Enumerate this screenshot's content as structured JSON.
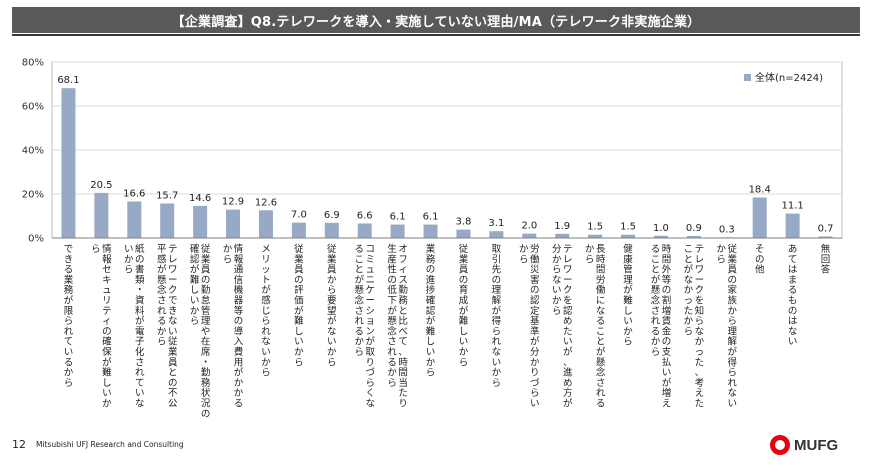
{
  "header": {
    "title": "【企業調査】Q8.テレワークを導入・実施していない理由/MA（テレワーク非実施企業）"
  },
  "footer": {
    "page": "12",
    "org": "Mitsubishi UFJ Research and Consulting",
    "logo": "MUFG"
  },
  "chart_data": {
    "type": "bar",
    "ylim": [
      0,
      80
    ],
    "yticks": [
      "0%",
      "20%",
      "40%",
      "60%",
      "80%"
    ],
    "grid": true,
    "legend_position": "top-right",
    "bar_color": "#97a9c4",
    "series": [
      {
        "name": "全体(n=2424)",
        "values": [
          68.1,
          20.5,
          16.6,
          15.7,
          14.6,
          12.9,
          12.6,
          7.0,
          6.9,
          6.6,
          6.1,
          6.1,
          3.8,
          3.1,
          2.0,
          1.9,
          1.5,
          1.5,
          1.0,
          0.9,
          0.3,
          18.4,
          11.1,
          0.7
        ]
      }
    ],
    "value_labels": [
      "68.1",
      "20.5",
      "16.6",
      "15.7",
      "14.6",
      "12.9",
      "12.6",
      "7.0",
      "6.9",
      "6.6",
      "6.1",
      "6.1",
      "3.8",
      "3.1",
      "2.0",
      "1.9",
      "1.5",
      "1.5",
      "1.0",
      "0.9",
      "0.3",
      "18.4",
      "11.1",
      "0.7"
    ],
    "categories": [
      [
        "できる業務が限られているから"
      ],
      [
        "情報セキュリティの確保が難しいか",
        "ら"
      ],
      [
        "紙の書類・資料が電子化されていな",
        "いから"
      ],
      [
        "テレワークできない従業員との不公",
        "平感が懸念されるから"
      ],
      [
        "従業員の勤怠管理や在席・勤務状況の",
        "確認が難しいから"
      ],
      [
        "情報通信機器等の導入費用がかかる",
        "から"
      ],
      [
        "メリットが感じられないから"
      ],
      [
        "従業員の評価が難しいから"
      ],
      [
        "従業員から要望がないから"
      ],
      [
        "コミュニケーションが取りづらくな",
        "ることが懸念されるから"
      ],
      [
        "オフィス勤務と比べて、時間当たり",
        "生産性の低下が懸念されるから"
      ],
      [
        "業務の進捗確認が難しいから"
      ],
      [
        "従業員の育成が難しいから"
      ],
      [
        "取引先の理解が得られないから"
      ],
      [
        "労働災害の認定基準が分かりづらい",
        "から"
      ],
      [
        "テレワークを認めたいが、進め方が",
        "分からないから"
      ],
      [
        "長時間労働になることが懸念される",
        "から"
      ],
      [
        "健康管理が難しいから"
      ],
      [
        "時間外等の割増賃金の支払いが増え",
        "ることが懸念されるから"
      ],
      [
        "テレワークを知らなかった、考えた",
        "ことがなかったから"
      ],
      [
        "従業員の家族から理解が得られない",
        "から"
      ],
      [
        "その他"
      ],
      [
        "あてはまるものはない"
      ],
      [
        "無回答"
      ]
    ]
  }
}
